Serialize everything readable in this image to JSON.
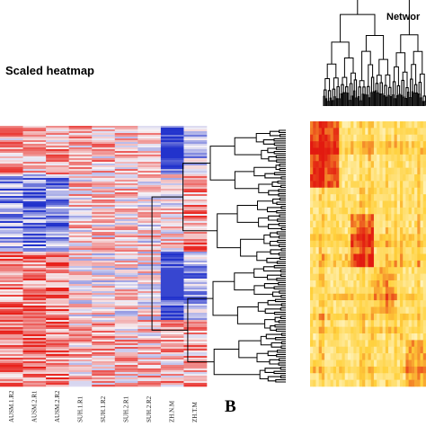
{
  "heatmap_panel": {
    "title": "Scaled heatmap",
    "panel_label": "B",
    "columns": [
      "AUSM.1.R2",
      "AUSM.2.R1",
      "AUSM.2.R2",
      "SUH.1.R1",
      "SUH.1.R2",
      "SUH.2.R1",
      "SUH.2.R2",
      "ZH.N.M",
      "ZH.T.M"
    ]
  },
  "network_panel": {
    "title": "Networ"
  },
  "colors": {
    "low": "#2233cc",
    "mid": "#f6f2f6",
    "high": "#e8221c",
    "net_low": "#fffbd8",
    "net_mid": "#ffd03a",
    "net_high": "#e21a10"
  },
  "chart_data": [
    {
      "type": "heatmap",
      "title": "Scaled heatmap",
      "columns": [
        "AUSM.1.R2",
        "AUSM.2.R1",
        "AUSM.2.R2",
        "SUH.1.R1",
        "SUH.1.R2",
        "SUH.2.R1",
        "SUH.2.R2",
        "ZH.N.M",
        "ZH.T.M"
      ],
      "color_scale": [
        "blue",
        "white",
        "red"
      ],
      "row_dendrogram": true,
      "row_blocks": [
        {
          "rows": "top",
          "AUSM": "mixed red",
          "SUH": "light red",
          "ZH.N.M": "blue",
          "ZH.T.M": "light blue"
        },
        {
          "rows": "upper-middle",
          "AUSM": "blue",
          "SUH": "light red/white",
          "ZH.N.M": "mixed",
          "ZH.T.M": "red"
        },
        {
          "rows": "lower-middle",
          "AUSM": "red",
          "SUH": "white",
          "ZH.N.M": "blue",
          "ZH.T.M": "light blue"
        },
        {
          "rows": "bottom",
          "AUSM": "red",
          "SUH": "mixed",
          "ZH.N.M": "mixed",
          "ZH.T.M": "light red"
        }
      ]
    },
    {
      "type": "heatmap",
      "title": "Networ",
      "color_scale": [
        "light yellow",
        "yellow",
        "red"
      ],
      "symmetric": true,
      "column_dendrogram": true
    }
  ]
}
